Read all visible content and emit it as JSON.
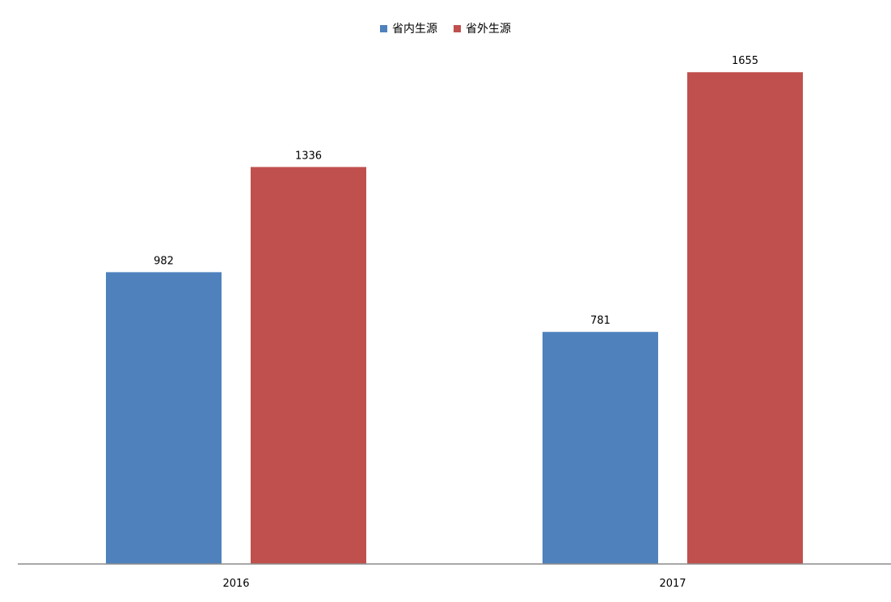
{
  "chart_data": {
    "type": "bar",
    "categories": [
      "2016",
      "2017"
    ],
    "series": [
      {
        "name": "省内生源",
        "values": [
          982,
          781
        ],
        "color": "#4F81BD"
      },
      {
        "name": "省外生源",
        "values": [
          1336,
          1655
        ],
        "color": "#C0504D"
      }
    ],
    "title": "",
    "xlabel": "",
    "ylabel": "",
    "ylim": [
      0,
      1800
    ],
    "grid": false,
    "legend_position": "top",
    "data_labels": true
  }
}
